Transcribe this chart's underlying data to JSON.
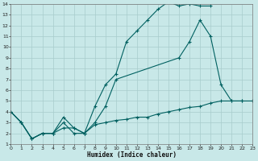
{
  "xlabel": "Humidex (Indice chaleur)",
  "bg_color": "#c8e8e8",
  "grid_color": "#a8cccc",
  "line_color": "#006060",
  "xlim": [
    0,
    23
  ],
  "ylim": [
    1,
    14
  ],
  "xticks": [
    0,
    1,
    2,
    3,
    4,
    5,
    6,
    7,
    8,
    9,
    10,
    11,
    12,
    13,
    14,
    15,
    16,
    17,
    18,
    19,
    20,
    21,
    22,
    23
  ],
  "yticks": [
    1,
    2,
    3,
    4,
    5,
    6,
    7,
    8,
    9,
    10,
    11,
    12,
    13,
    14
  ],
  "series": [
    {
      "x": [
        0,
        1,
        2,
        3,
        4,
        5,
        6,
        7,
        8,
        9,
        10,
        11,
        12,
        13,
        14,
        15,
        16,
        17,
        18,
        19
      ],
      "y": [
        4,
        3,
        1.5,
        2,
        2,
        3.0,
        2.0,
        2,
        4.5,
        6.5,
        7.5,
        10.5,
        11.5,
        12.5,
        13.5,
        14.2,
        13.8,
        14,
        13.8,
        13.8
      ]
    },
    {
      "x": [
        0,
        1,
        2,
        3,
        4,
        5,
        6,
        7,
        8,
        9,
        10,
        16,
        17,
        18,
        19,
        20,
        21,
        22
      ],
      "y": [
        4,
        3,
        1.5,
        2,
        2.0,
        3.5,
        2.5,
        2.0,
        3.0,
        4.5,
        7.0,
        9.0,
        10.5,
        12.5,
        11.0,
        6.5,
        5.0,
        5.0
      ]
    },
    {
      "x": [
        0,
        1,
        2,
        3,
        4,
        5,
        6,
        7,
        8,
        9,
        10,
        11,
        12,
        13,
        14,
        15,
        16,
        17,
        18,
        19,
        20,
        21,
        22,
        23
      ],
      "y": [
        4,
        3,
        1.5,
        2,
        2,
        2.5,
        2.5,
        2,
        2.8,
        3.0,
        3.2,
        3.3,
        3.5,
        3.5,
        3.8,
        4.0,
        4.2,
        4.4,
        4.5,
        4.8,
        5.0,
        5.0,
        5.0,
        5.0
      ]
    }
  ]
}
